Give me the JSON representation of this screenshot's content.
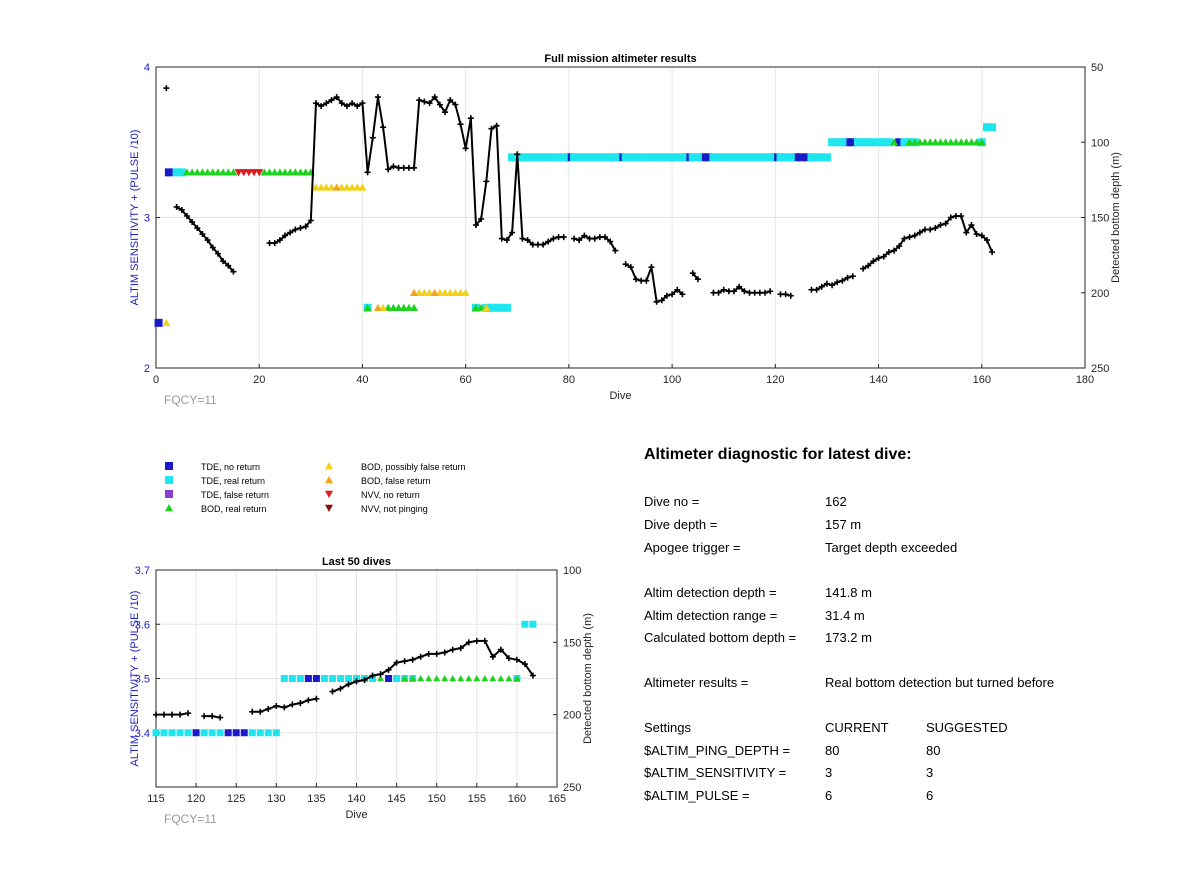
{
  "colors": {
    "tde_no_return": "#1a1ac8",
    "tde_real_return": "#1ee6ee",
    "tde_false_return": "#8a3fd0",
    "bod_real_return": "#1ed21e",
    "bod_possibly_false_return": "#f2d21a",
    "bod_false_return": "#f5a31a",
    "nvv_no_return": "#e01a1a",
    "nvv_not_pinging": "#8a1010",
    "depth_line": "#000000",
    "left_axis": "#2020c0",
    "fqcy": "#9a9a9a"
  },
  "chart_data": [
    {
      "type": "scatter",
      "title": "Full mission altimeter results",
      "xlabel": "Dive",
      "ylabel": "ALTIM SENSITIVITY + (PULSE /10)",
      "ylabel_right": "Detected bottom depth (m)",
      "xlim": [
        0,
        180
      ],
      "ylim": [
        2,
        4
      ],
      "ylim_right": [
        250,
        50
      ],
      "x_ticks": [
        "0",
        "20",
        "40",
        "60",
        "80",
        "100",
        "120",
        "140",
        "160",
        "180"
      ],
      "y_ticks": [
        "2",
        "3",
        "4"
      ],
      "y_ticks_right": [
        "50",
        "100",
        "150",
        "200",
        "250"
      ],
      "grid": true,
      "annotation": "FQCY=11",
      "markers": [
        {
          "kind": "tde_no_return",
          "x": [
            0.5,
            2.5,
            80,
            90,
            103,
            106,
            107,
            120,
            124,
            125,
            126,
            134,
            135,
            144
          ],
          "y": [
            2.3,
            3.3,
            3.4,
            3.4,
            3.4,
            3.4,
            3.4,
            3.4,
            3.4,
            3.4,
            3.4,
            3.5,
            3.5,
            3.5
          ]
        },
        {
          "kind": "tde_real_return",
          "x": [
            4,
            5,
            41,
            62,
            64,
            65,
            66,
            67,
            68,
            69,
            70,
            71,
            72,
            73,
            74,
            75,
            76,
            77,
            78,
            79,
            81,
            82,
            83,
            84,
            85,
            86,
            87,
            88,
            89,
            91,
            92,
            93,
            94,
            95,
            96,
            97,
            98,
            99,
            100,
            101,
            102,
            104,
            105,
            108,
            109,
            110,
            111,
            112,
            113,
            114,
            115,
            116,
            117,
            118,
            119,
            121,
            122,
            123,
            127,
            128,
            129,
            130,
            131,
            132,
            133,
            136,
            137,
            138,
            139,
            140,
            141,
            142,
            145,
            146,
            147,
            160,
            161,
            162
          ],
          "y": [
            3.3,
            3.3,
            2.4,
            2.4,
            2.4,
            2.4,
            2.4,
            2.4,
            2.4,
            3.4,
            3.4,
            3.4,
            3.4,
            3.4,
            3.4,
            3.4,
            3.4,
            3.4,
            3.4,
            3.4,
            3.4,
            3.4,
            3.4,
            3.4,
            3.4,
            3.4,
            3.4,
            3.4,
            3.4,
            3.4,
            3.4,
            3.4,
            3.4,
            3.4,
            3.4,
            3.4,
            3.4,
            3.4,
            3.4,
            3.4,
            3.4,
            3.4,
            3.4,
            3.4,
            3.4,
            3.4,
            3.4,
            3.4,
            3.4,
            3.4,
            3.4,
            3.4,
            3.4,
            3.4,
            3.4,
            3.4,
            3.4,
            3.4,
            3.4,
            3.4,
            3.4,
            3.4,
            3.5,
            3.5,
            3.5,
            3.5,
            3.5,
            3.5,
            3.5,
            3.5,
            3.5,
            3.5,
            3.5,
            3.5,
            3.5,
            3.5,
            3.6,
            3.6
          ]
        },
        {
          "kind": "bod_real_return",
          "x": [
            6,
            7,
            8,
            9,
            10,
            11,
            12,
            13,
            14,
            15,
            21,
            22,
            23,
            24,
            25,
            26,
            27,
            28,
            29,
            30,
            41,
            45,
            46,
            47,
            48,
            49,
            50,
            62,
            63,
            143,
            146,
            147,
            148,
            149,
            150,
            151,
            152,
            153,
            154,
            155,
            156,
            157,
            158,
            159,
            160
          ],
          "y": [
            3.3,
            3.3,
            3.3,
            3.3,
            3.3,
            3.3,
            3.3,
            3.3,
            3.3,
            3.3,
            3.3,
            3.3,
            3.3,
            3.3,
            3.3,
            3.3,
            3.3,
            3.3,
            3.3,
            3.3,
            2.4,
            2.4,
            2.4,
            2.4,
            2.4,
            2.4,
            2.4,
            2.4,
            2.4,
            3.5,
            3.5,
            3.5,
            3.5,
            3.5,
            3.5,
            3.5,
            3.5,
            3.5,
            3.5,
            3.5,
            3.5,
            3.5,
            3.5,
            3.5,
            3.5
          ]
        },
        {
          "kind": "bod_possibly_false_return",
          "x": [
            2,
            31,
            32,
            33,
            34,
            36,
            37,
            38,
            39,
            40,
            44,
            51,
            52,
            53,
            55,
            56,
            57,
            58,
            59,
            60,
            64
          ],
          "y": [
            2.3,
            3.2,
            3.2,
            3.2,
            3.2,
            3.2,
            3.2,
            3.2,
            3.2,
            3.2,
            2.4,
            2.5,
            2.5,
            2.5,
            2.5,
            2.5,
            2.5,
            2.5,
            2.5,
            2.5,
            2.4
          ]
        },
        {
          "kind": "bod_false_return",
          "x": [
            35,
            43,
            50,
            54
          ],
          "y": [
            3.2,
            2.4,
            2.5,
            2.5
          ]
        },
        {
          "kind": "nvv_no_return",
          "x": [
            16,
            17,
            18,
            19,
            20
          ],
          "y": [
            3.3,
            3.3,
            3.3,
            3.3,
            3.3
          ]
        }
      ],
      "depth_segments": [
        {
          "dive": [
            2
          ],
          "depth": [
            64
          ]
        },
        {
          "dive": [
            4,
            5,
            6,
            7,
            8,
            9,
            10,
            11,
            12,
            13,
            14,
            15
          ],
          "depth": [
            143,
            145,
            149,
            153,
            157,
            161,
            165,
            170,
            174,
            179,
            182,
            186
          ]
        },
        {
          "dive": [
            22,
            23,
            24,
            25,
            26,
            27,
            28,
            29,
            30,
            31,
            32,
            33,
            34,
            35,
            36,
            37,
            38,
            39,
            40,
            41,
            42,
            43,
            44,
            45,
            46,
            47,
            48,
            49,
            50,
            51,
            52,
            53,
            54,
            55,
            56,
            57,
            58,
            59,
            60,
            61,
            62,
            63,
            64,
            65,
            66,
            67,
            68,
            69,
            70,
            71,
            72,
            73,
            74,
            75,
            76,
            77,
            78,
            79
          ],
          "depth": [
            167,
            167,
            165,
            162,
            160,
            158,
            157,
            156,
            152,
            74,
            76,
            74,
            72,
            70,
            74,
            76,
            74,
            76,
            74,
            120,
            97,
            70,
            90,
            118,
            116,
            117,
            117,
            117,
            117,
            72,
            73,
            74,
            70,
            75,
            80,
            72,
            75,
            88,
            104,
            84,
            155,
            151,
            126,
            91,
            89,
            164,
            165,
            160,
            108,
            164,
            165,
            168,
            168,
            168,
            166,
            164,
            163,
            163
          ]
        },
        {
          "dive": [
            81,
            82,
            83,
            84,
            85,
            86,
            87,
            88,
            89
          ],
          "depth": [
            164,
            165,
            162,
            164,
            164,
            163,
            163,
            166,
            172
          ]
        },
        {
          "dive": [
            91,
            92,
            93,
            94,
            95,
            96,
            97,
            98,
            99,
            100,
            101,
            102
          ],
          "depth": [
            181,
            183,
            191,
            192,
            192,
            183,
            206,
            205,
            202,
            201,
            198,
            201
          ]
        },
        {
          "dive": [
            104,
            105
          ],
          "depth": [
            187,
            191
          ]
        },
        {
          "dive": [
            108,
            109,
            110,
            111,
            112,
            113,
            114,
            115,
            116,
            117,
            118,
            119
          ],
          "depth": [
            200,
            200,
            198,
            199,
            199,
            196,
            199,
            200,
            200,
            200,
            200,
            199
          ]
        },
        {
          "dive": [
            121,
            122,
            123
          ],
          "depth": [
            201,
            201,
            202
          ]
        },
        {
          "dive": [
            127,
            128,
            129,
            130,
            131,
            132,
            133,
            134,
            135
          ],
          "depth": [
            198,
            198,
            196,
            194,
            195,
            193,
            192,
            190,
            189
          ]
        },
        {
          "dive": [
            137,
            138,
            139,
            140,
            141,
            142,
            143,
            144,
            145,
            146,
            147,
            148,
            149,
            150,
            151,
            152,
            153,
            154,
            155,
            156,
            157,
            158,
            159,
            160,
            161,
            162
          ],
          "depth": [
            184,
            182,
            179,
            177,
            176,
            173,
            172,
            169,
            164,
            163,
            162,
            160,
            158,
            158,
            157,
            155,
            154,
            150,
            149,
            149,
            160,
            155,
            161,
            162,
            165,
            173
          ]
        }
      ]
    },
    {
      "type": "scatter",
      "title": "Last 50 dives",
      "xlabel": "Dive",
      "ylabel": "ALTIM SENSITIVITY + (PULSE /10)",
      "ylabel_right": "Detected bottom depth (m)",
      "xlim": [
        115,
        165
      ],
      "ylim": [
        3.3,
        3.7
      ],
      "ylim_right": [
        250,
        100
      ],
      "x_ticks": [
        "115",
        "120",
        "125",
        "130",
        "135",
        "140",
        "145",
        "150",
        "155",
        "160",
        "165"
      ],
      "y_ticks": [
        "3.4",
        "3.5",
        "3.6",
        "3.7"
      ],
      "y_ticks_right": [
        "100",
        "150",
        "200",
        "250"
      ],
      "grid": true,
      "annotation": "FQCY=11"
    }
  ],
  "legend": {
    "items": [
      {
        "kind": "tde_no_return",
        "shape": "square",
        "label": "TDE, no return"
      },
      {
        "kind": "tde_real_return",
        "shape": "square",
        "label": "TDE, real return"
      },
      {
        "kind": "tde_false_return",
        "shape": "square",
        "label": "TDE, false return"
      },
      {
        "kind": "bod_real_return",
        "shape": "triangle-up",
        "label": "BOD, real return"
      },
      {
        "kind": "bod_possibly_false_return",
        "shape": "triangle-up",
        "label": "BOD, possibly false return"
      },
      {
        "kind": "bod_false_return",
        "shape": "triangle-up",
        "label": "BOD, false return"
      },
      {
        "kind": "nvv_no_return",
        "shape": "triangle-down",
        "label": "NVV, no return"
      },
      {
        "kind": "nvv_not_pinging",
        "shape": "triangle-down",
        "label": "NVV, not pinging"
      }
    ]
  },
  "diagnostic": {
    "title": "Altimeter diagnostic for latest dive:",
    "rows": [
      {
        "label": "Dive no =",
        "value": "162"
      },
      {
        "label": "Dive depth =",
        "value": "157 m"
      },
      {
        "label": "Apogee trigger =",
        "value": "Target depth exceeded"
      },
      {
        "label": "Altim detection depth =",
        "value": "141.8 m"
      },
      {
        "label": "Altim detection range =",
        "value": "31.4 m"
      },
      {
        "label": "Calculated bottom depth =",
        "value": "173.2 m"
      },
      {
        "label": "Altimeter results =",
        "value": "Real bottom detection but turned before"
      }
    ],
    "settings": {
      "header": [
        "Settings",
        "CURRENT",
        "SUGGESTED"
      ],
      "rows": [
        {
          "label": "$ALTIM_PING_DEPTH =",
          "current": "80",
          "suggested": "80"
        },
        {
          "label": "$ALTIM_SENSITIVITY =",
          "current": "3",
          "suggested": "3"
        },
        {
          "label": "$ALTIM_PULSE =",
          "current": "6",
          "suggested": "6"
        }
      ]
    }
  }
}
